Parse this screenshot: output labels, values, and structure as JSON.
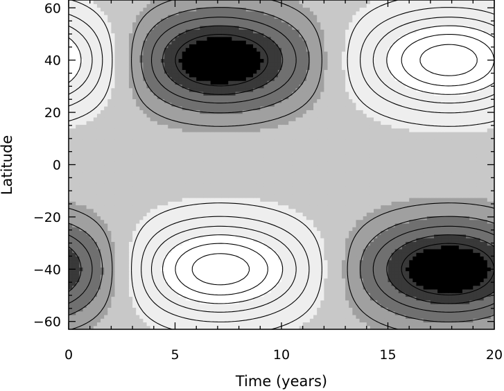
{
  "chart_data": {
    "type": "heatmap",
    "title": "",
    "xlabel": "Time (years)",
    "ylabel": "Latitude",
    "xlim": [
      0,
      20
    ],
    "ylim": [
      -63,
      63
    ],
    "x_ticks": [
      0,
      5,
      10,
      15,
      20
    ],
    "x_tick_labels": [
      "0",
      "5",
      "10",
      "15",
      "20"
    ],
    "y_ticks": [
      -60,
      -40,
      -20,
      0,
      20,
      40,
      60
    ],
    "y_tick_labels": [
      "−60",
      "−40",
      "−20",
      "0",
      "20",
      "40",
      "60"
    ],
    "period_years": 20,
    "anomaly_centers": [
      {
        "time": 7,
        "latitude": 40,
        "sign": "negative"
      },
      {
        "time": 18,
        "latitude": 40,
        "sign": "positive"
      },
      {
        "time": 7,
        "latitude": -40,
        "sign": "positive"
      },
      {
        "time": 18,
        "latitude": -40,
        "sign": "negative"
      }
    ],
    "contour_levels": [
      -0.9,
      -0.75,
      -0.6,
      -0.45,
      -0.3,
      -0.15,
      0.15,
      0.3,
      0.45,
      0.6,
      0.75,
      0.9
    ],
    "fill_levels": [
      -0.6,
      -0.3,
      0.3,
      0.6
    ],
    "colormap": [
      "#000000",
      "#393939",
      "#707070",
      "#a0a0a0",
      "#c8c8c8",
      "#eeeeee",
      "#ffffff"
    ],
    "grid": false,
    "legend": "none"
  }
}
